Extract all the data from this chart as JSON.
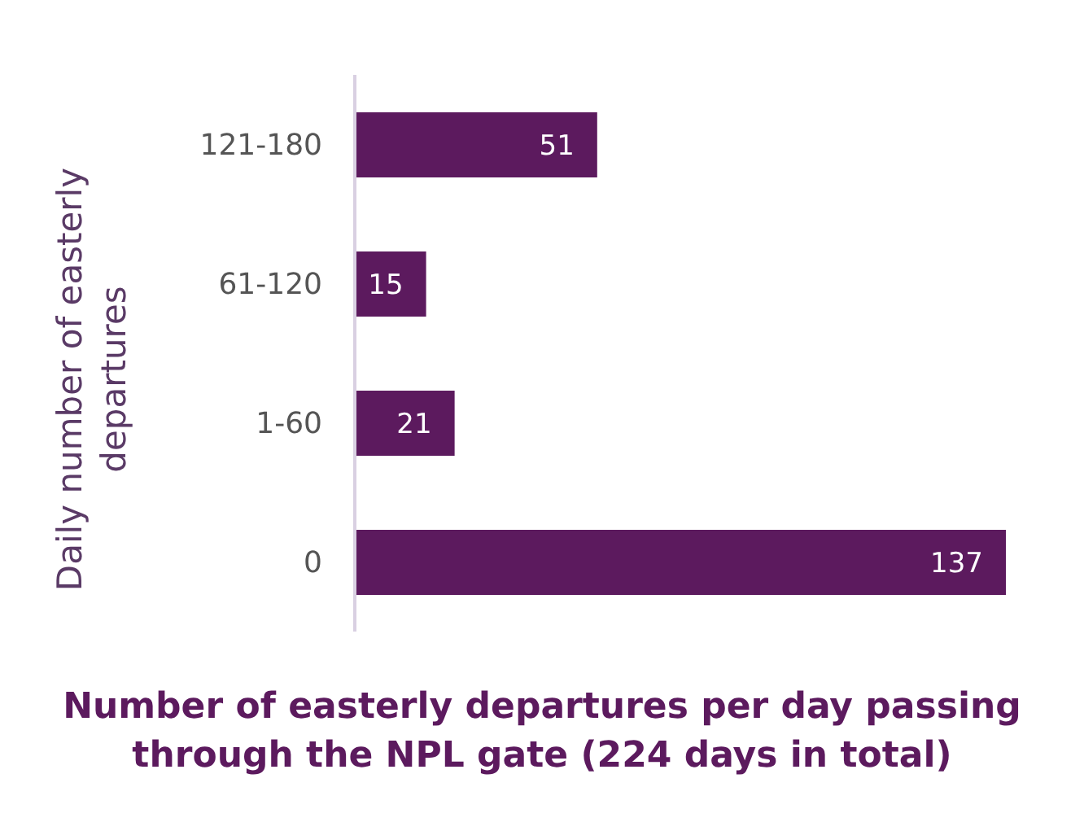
{
  "chart_data": {
    "type": "bar",
    "orientation": "horizontal",
    "title": "Number of easterly departures per day passing through the NPL gate (224 days in total)",
    "ylabel": "Daily number of easterly departures",
    "categories": [
      "121-180",
      "61-120",
      "1-60",
      "0"
    ],
    "values": [
      51,
      15,
      21,
      137
    ],
    "color": "#5c1a5e",
    "data_labels": true,
    "grid": false,
    "legend": false
  }
}
